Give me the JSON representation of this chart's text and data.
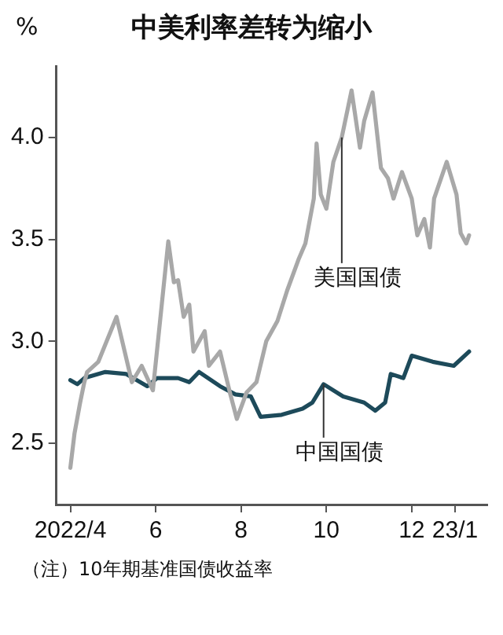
{
  "chart_data": {
    "type": "line",
    "title": "中美利率差转为缩小",
    "ylabel": "%",
    "annotations": [
      "（注）10年期基准国债收益率"
    ],
    "xlim": [
      "2022-03-22",
      "2023-01-24"
    ],
    "xticks": [
      {
        "value": "2022-04-01",
        "label": "2022/4"
      },
      {
        "value": "2022-06-01",
        "label": "6"
      },
      {
        "value": "2022-08-01",
        "label": "8"
      },
      {
        "value": "2022-10-01",
        "label": "10"
      },
      {
        "value": "2022-12-01",
        "label": "12"
      },
      {
        "value": "2023-01-01",
        "label": "23/1"
      }
    ],
    "ylim": [
      2.2,
      4.35
    ],
    "yticks": [
      2.5,
      {
        "value": 3,
        "label": "3.0"
      },
      3.5,
      {
        "value": 4,
        "label": "4.0"
      }
    ],
    "grid": false,
    "legend": false,
    "marker": "none",
    "line_style": "solid",
    "series": [
      {
        "name": "美国国债",
        "color": "#a8a8a8",
        "x": [
          "2022-04-01",
          "2022-04-04",
          "2022-04-08",
          "2022-04-11",
          "2022-04-13",
          "2022-04-21",
          "2022-05-04",
          "2022-05-15",
          "2022-05-22",
          "2022-05-30",
          "2022-06-10",
          "2022-06-14",
          "2022-06-17",
          "2022-06-21",
          "2022-06-25",
          "2022-06-28",
          "2022-07-06",
          "2022-07-09",
          "2022-07-17",
          "2022-07-24",
          "2022-07-29",
          "2022-08-05",
          "2022-08-12",
          "2022-08-19",
          "2022-08-27",
          "2022-09-03",
          "2022-09-11",
          "2022-09-16",
          "2022-09-22",
          "2022-09-24",
          "2022-09-27",
          "2022-10-01",
          "2022-10-06",
          "2022-10-12",
          "2022-10-19",
          "2022-10-25",
          "2022-10-28",
          "2022-11-03",
          "2022-11-09",
          "2022-11-14",
          "2022-11-18",
          "2022-11-24",
          "2022-12-01",
          "2022-12-05",
          "2022-12-10",
          "2022-12-14",
          "2022-12-17",
          "2022-12-26",
          "2023-01-02",
          "2023-01-05",
          "2023-01-09",
          "2023-01-11"
        ],
        "values": [
          2.38,
          2.55,
          2.7,
          2.8,
          2.85,
          2.9,
          3.12,
          2.8,
          2.88,
          2.76,
          3.49,
          3.29,
          3.3,
          3.12,
          3.18,
          2.95,
          3.05,
          2.88,
          2.95,
          2.75,
          2.62,
          2.75,
          2.8,
          3.0,
          3.1,
          3.25,
          3.4,
          3.48,
          3.7,
          3.97,
          3.72,
          3.65,
          3.88,
          4.0,
          4.23,
          3.95,
          4.08,
          4.22,
          3.85,
          3.8,
          3.7,
          3.83,
          3.7,
          3.52,
          3.6,
          3.46,
          3.7,
          3.88,
          3.72,
          3.53,
          3.48,
          3.52
        ]
      },
      {
        "name": "中国国债",
        "color": "#1d4a5a",
        "x": [
          "2022-04-01",
          "2022-04-06",
          "2022-04-11",
          "2022-04-26",
          "2022-05-11",
          "2022-05-26",
          "2022-06-02",
          "2022-06-17",
          "2022-06-25",
          "2022-07-02",
          "2022-07-17",
          "2022-07-28",
          "2022-08-08",
          "2022-08-15",
          "2022-08-30",
          "2022-09-14",
          "2022-09-21",
          "2022-09-29",
          "2022-10-13",
          "2022-10-28",
          "2022-11-05",
          "2022-11-12",
          "2022-11-16",
          "2022-11-25",
          "2022-12-01",
          "2022-12-16",
          "2022-12-31",
          "2023-01-11"
        ],
        "values": [
          2.81,
          2.79,
          2.82,
          2.85,
          2.84,
          2.78,
          2.82,
          2.82,
          2.8,
          2.85,
          2.78,
          2.74,
          2.73,
          2.63,
          2.64,
          2.67,
          2.7,
          2.79,
          2.73,
          2.7,
          2.66,
          2.7,
          2.84,
          2.82,
          2.93,
          2.9,
          2.88,
          2.95
        ]
      }
    ]
  }
}
